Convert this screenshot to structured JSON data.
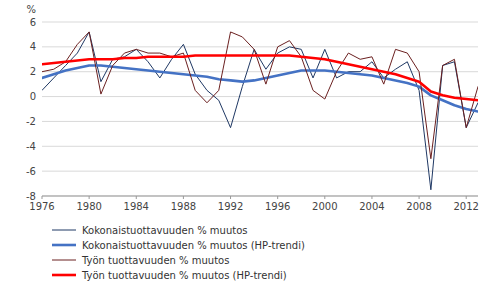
{
  "chart_data": {
    "type": "line",
    "ylabel": "%",
    "x": [
      1976,
      1977,
      1978,
      1979,
      1980,
      1981,
      1982,
      1983,
      1984,
      1985,
      1986,
      1987,
      1988,
      1989,
      1990,
      1991,
      1992,
      1993,
      1994,
      1995,
      1996,
      1997,
      1998,
      1999,
      2000,
      2001,
      2002,
      2003,
      2004,
      2005,
      2006,
      2007,
      2008,
      2009,
      2010,
      2011,
      2012,
      2013
    ],
    "series": [
      {
        "name": "Kokonaistuottavuuden % muutos",
        "color": "#1F3864",
        "values": [
          0.5,
          1.5,
          2.5,
          3.5,
          5.2,
          1.2,
          3.0,
          3.2,
          3.8,
          2.8,
          1.5,
          3.0,
          4.2,
          1.8,
          0.5,
          -0.3,
          -2.5,
          0.8,
          3.8,
          2.2,
          3.5,
          4.0,
          3.8,
          1.5,
          3.8,
          1.5,
          2.0,
          2.0,
          2.8,
          1.5,
          2.2,
          2.8,
          0.5,
          -7.5,
          2.5,
          2.8,
          -2.5,
          -0.5
        ]
      },
      {
        "name": "Kokonaistuottavuuden % muutos (HP-trendi)",
        "color": "#4472C4",
        "values": [
          1.5,
          1.8,
          2.1,
          2.3,
          2.5,
          2.5,
          2.4,
          2.3,
          2.2,
          2.1,
          2.0,
          1.9,
          1.8,
          1.7,
          1.6,
          1.4,
          1.3,
          1.2,
          1.3,
          1.5,
          1.7,
          1.9,
          2.1,
          2.1,
          2.1,
          2.0,
          1.9,
          1.8,
          1.7,
          1.5,
          1.3,
          1.1,
          0.8,
          0.1,
          -0.3,
          -0.7,
          -1.0,
          -1.2
        ]
      },
      {
        "name": "Työn tuottavuuden % muutos",
        "color": "#6B2020",
        "values": [
          2.0,
          2.2,
          2.8,
          4.2,
          5.2,
          0.2,
          2.5,
          3.5,
          3.8,
          3.5,
          3.5,
          3.2,
          3.5,
          0.5,
          -0.5,
          0.5,
          5.2,
          4.8,
          3.8,
          1.0,
          4.0,
          4.5,
          3.2,
          0.5,
          -0.2,
          2.0,
          3.5,
          3.0,
          3.2,
          1.0,
          3.8,
          3.5,
          2.0,
          -5.0,
          2.5,
          3.0,
          -2.5,
          0.8
        ]
      },
      {
        "name": "Työn tuottavuuden % muutos (HP-trendi)",
        "color": "#FF0000",
        "values": [
          2.6,
          2.7,
          2.8,
          2.9,
          3.0,
          3.0,
          3.0,
          3.1,
          3.1,
          3.2,
          3.2,
          3.2,
          3.2,
          3.3,
          3.3,
          3.3,
          3.3,
          3.3,
          3.3,
          3.3,
          3.3,
          3.3,
          3.2,
          3.1,
          3.0,
          2.8,
          2.6,
          2.4,
          2.2,
          2.0,
          1.8,
          1.5,
          1.2,
          0.4,
          0.1,
          -0.1,
          -0.2,
          -0.3
        ]
      }
    ],
    "xlim": [
      1976,
      2013
    ],
    "xticks": [
      1976,
      1980,
      1984,
      1988,
      1992,
      1996,
      2000,
      2004,
      2008,
      2012
    ],
    "ylim": [
      -8,
      6
    ],
    "yticks": [
      -8,
      -6,
      -4,
      -2,
      0,
      2,
      4,
      6
    ],
    "grid": true,
    "legend": "bottom"
  }
}
